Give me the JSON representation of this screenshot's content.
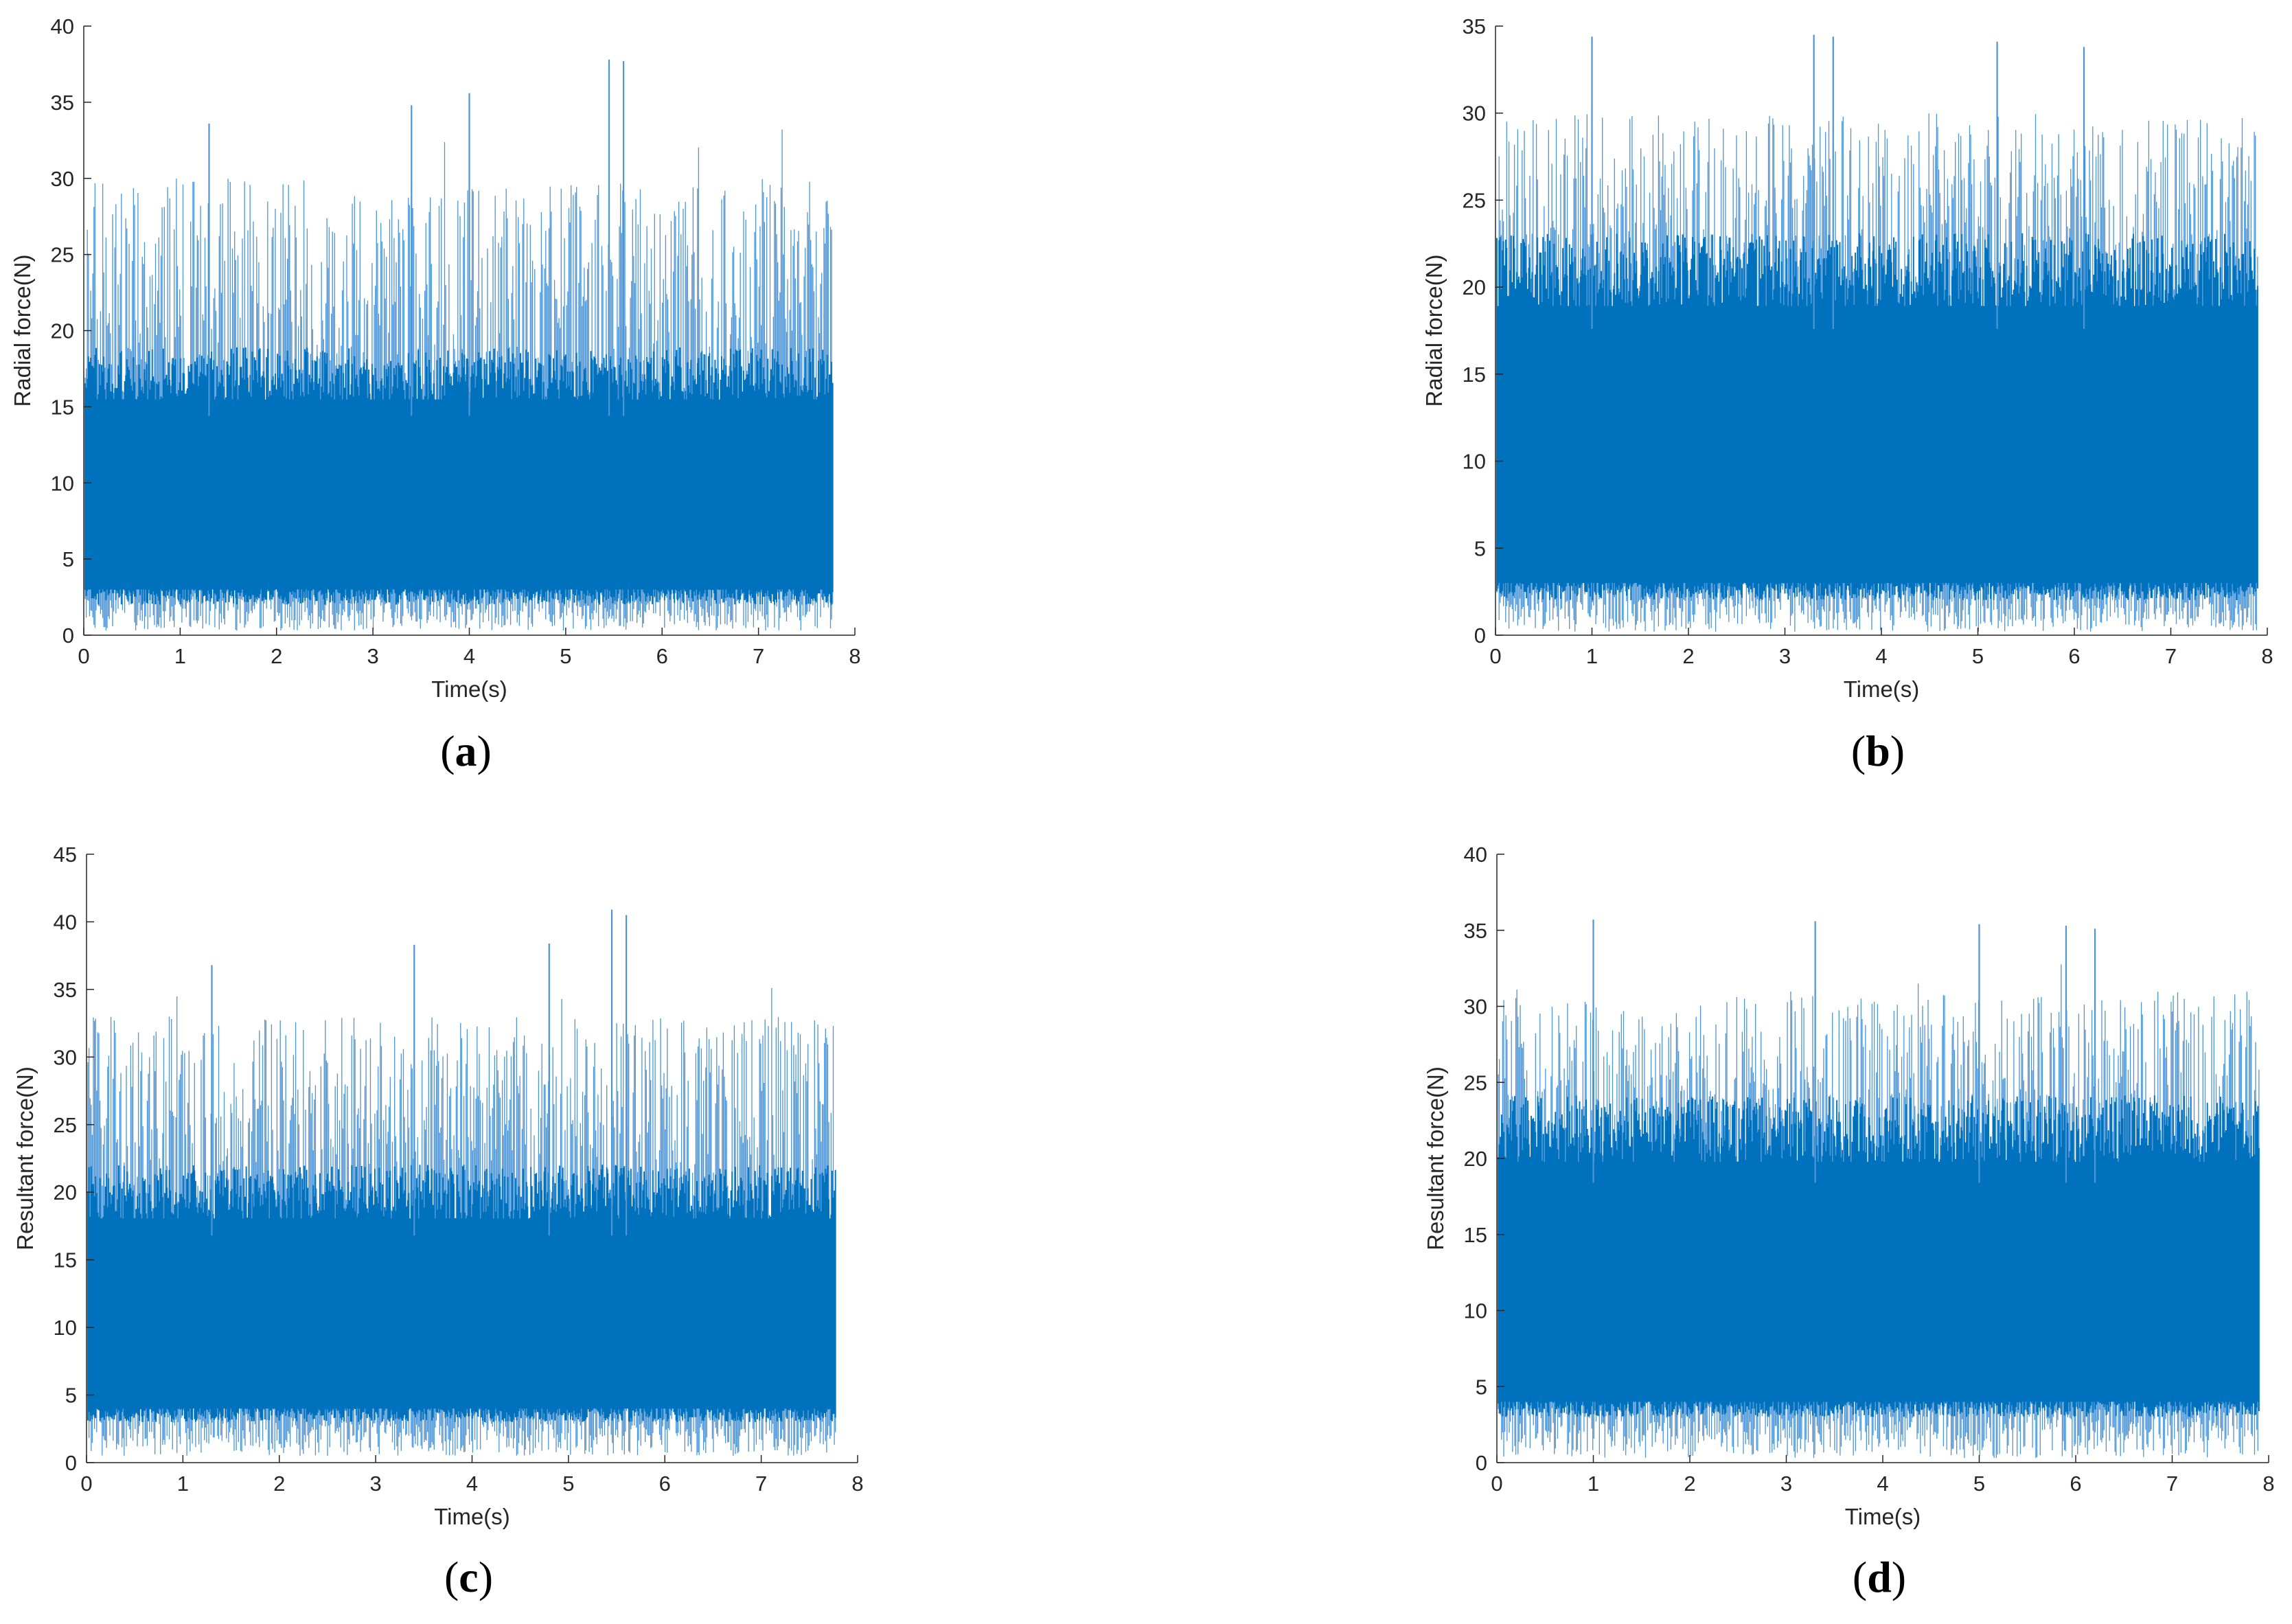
{
  "colors": {
    "signal": "#0072BD",
    "signal_light": "#4C95D6",
    "axis": "#262626",
    "background": "#FFFFFF"
  },
  "chart_data": [
    {
      "id": "a",
      "type": "line",
      "panel_label": "(a)",
      "panel_letter": "a",
      "xlabel": "Time(s)",
      "ylabel": "Radial force(N)",
      "xlim": [
        0,
        8
      ],
      "ylim": [
        0,
        40
      ],
      "xticks": [
        0,
        1,
        2,
        3,
        4,
        5,
        6,
        7,
        8
      ],
      "yticks": [
        0,
        5,
        10,
        15,
        20,
        25,
        30,
        35,
        40
      ],
      "x_end": 7.77,
      "approx_range": {
        "min": 0.3,
        "dense_band_low": 2,
        "dense_band_high": 18,
        "typical_peak": 30,
        "max": 37.8
      },
      "notable_peaks": [
        {
          "x": 5.45,
          "y": 37.8
        },
        {
          "x": 5.6,
          "y": 37.7
        },
        {
          "x": 4.0,
          "y": 35.6
        },
        {
          "x": 3.4,
          "y": 34.8
        },
        {
          "x": 1.3,
          "y": 33.6
        }
      ]
    },
    {
      "id": "b",
      "type": "line",
      "panel_label": "(b)",
      "panel_letter": "b",
      "xlabel": "Time(s)",
      "ylabel": "Radial force(N)",
      "xlim": [
        0,
        8
      ],
      "ylim": [
        0,
        35
      ],
      "xticks": [
        0,
        1,
        2,
        3,
        4,
        5,
        6,
        7,
        8
      ],
      "yticks": [
        0,
        5,
        10,
        15,
        20,
        25,
        30,
        35
      ],
      "x_end": 7.9,
      "approx_range": {
        "min": 0.2,
        "dense_band_low": 2,
        "dense_band_high": 22,
        "typical_peak": 30,
        "max": 34.5
      },
      "notable_peaks": [
        {
          "x": 1.0,
          "y": 34.4
        },
        {
          "x": 3.3,
          "y": 34.5
        },
        {
          "x": 3.5,
          "y": 34.4
        },
        {
          "x": 5.2,
          "y": 34.1
        },
        {
          "x": 6.1,
          "y": 33.8
        }
      ]
    },
    {
      "id": "c",
      "type": "line",
      "panel_label": "(c)",
      "panel_letter": "c",
      "xlabel": "Time(s)",
      "ylabel": "Resultant force(N)",
      "xlim": [
        0,
        8
      ],
      "ylim": [
        0,
        45
      ],
      "xticks": [
        0,
        1,
        2,
        3,
        4,
        5,
        6,
        7,
        8
      ],
      "yticks": [
        0,
        5,
        10,
        15,
        20,
        25,
        30,
        35,
        40,
        45
      ],
      "x_end": 7.77,
      "approx_range": {
        "min": 0.5,
        "dense_band_low": 3,
        "dense_band_high": 21,
        "typical_peak": 33,
        "max": 40.9
      },
      "notable_peaks": [
        {
          "x": 5.45,
          "y": 40.9
        },
        {
          "x": 5.6,
          "y": 40.5
        },
        {
          "x": 3.4,
          "y": 38.3
        },
        {
          "x": 4.8,
          "y": 38.4
        },
        {
          "x": 1.3,
          "y": 36.8
        }
      ]
    },
    {
      "id": "d",
      "type": "line",
      "panel_label": "(d)",
      "panel_letter": "d",
      "xlabel": "Time(s)",
      "ylabel": "Resultant force(N)",
      "xlim": [
        0,
        8
      ],
      "ylim": [
        0,
        40
      ],
      "xticks": [
        0,
        1,
        2,
        3,
        4,
        5,
        6,
        7,
        8
      ],
      "yticks": [
        0,
        5,
        10,
        15,
        20,
        25,
        30,
        35,
        40
      ],
      "x_end": 7.9,
      "approx_range": {
        "min": 0.3,
        "dense_band_low": 3,
        "dense_band_high": 23,
        "typical_peak": 31,
        "max": 35.8
      },
      "notable_peaks": [
        {
          "x": 1.0,
          "y": 35.7
        },
        {
          "x": 3.3,
          "y": 35.6
        },
        {
          "x": 5.0,
          "y": 35.4
        },
        {
          "x": 5.9,
          "y": 35.3
        },
        {
          "x": 6.2,
          "y": 35.1
        }
      ]
    }
  ]
}
